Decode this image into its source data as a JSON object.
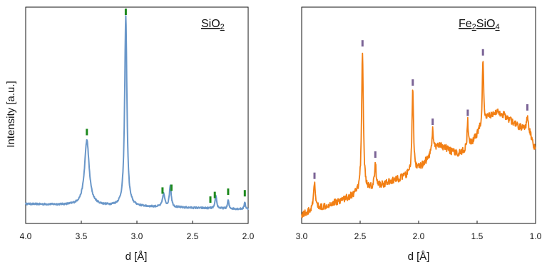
{
  "chart_data": [
    {
      "type": "line",
      "panel_label": "SiO2",
      "label_base": "SiO",
      "label_sub": "2",
      "xlabel": "d [Å]",
      "ylabel": "Intensity [a.u.]",
      "xlim": [
        4.0,
        2.0
      ],
      "x_reversed": true,
      "xticks": [
        "4.0",
        "3.5",
        "3.0",
        "2.5",
        "2.0"
      ],
      "xtick_values": [
        4.0,
        3.5,
        3.0,
        2.5,
        2.0
      ],
      "ylim": [
        0,
        100
      ],
      "line_color": "#6a97c9",
      "marker_color": "#1e8a1e",
      "background": 9,
      "peaks": [
        {
          "d": 3.45,
          "intensity": 30,
          "width": 0.025
        },
        {
          "d": 3.1,
          "intensity": 88,
          "width": 0.012
        },
        {
          "d": 2.76,
          "intensity": 6,
          "width": 0.012
        },
        {
          "d": 2.7,
          "intensity": 10,
          "width": 0.01
        },
        {
          "d": 2.29,
          "intensity": 6,
          "width": 0.008
        },
        {
          "d": 2.18,
          "intensity": 4,
          "width": 0.007
        },
        {
          "d": 2.03,
          "intensity": 3.5,
          "width": 0.006
        }
      ],
      "markers": [
        3.45,
        3.1,
        2.77,
        2.69,
        2.34,
        2.3,
        2.18,
        2.03
      ]
    },
    {
      "type": "line",
      "panel_label": "Fe2SiO4",
      "label_pre": "Fe",
      "label_sub1": "2",
      "label_mid": "SiO",
      "label_sub2": "4",
      "xlabel": "d [Å]",
      "xlim": [
        3.0,
        1.0
      ],
      "x_reversed": true,
      "xticks": [
        "3.0",
        "2.5",
        "2.0",
        "1.5",
        "1.0"
      ],
      "xtick_values": [
        3.0,
        2.5,
        2.0,
        1.5,
        1.0
      ],
      "ylim": [
        0,
        100
      ],
      "line_color": "#f27f14",
      "marker_color": "#7b6496",
      "peaks": [
        {
          "d": 2.89,
          "intensity": 12,
          "width": 0.01
        },
        {
          "d": 2.48,
          "intensity": 65,
          "width": 0.009
        },
        {
          "d": 2.37,
          "intensity": 11,
          "width": 0.008
        },
        {
          "d": 2.05,
          "intensity": 38,
          "width": 0.008
        },
        {
          "d": 1.88,
          "intensity": 10,
          "width": 0.008
        },
        {
          "d": 1.58,
          "intensity": 12,
          "width": 0.006
        },
        {
          "d": 1.45,
          "intensity": 30,
          "width": 0.007
        },
        {
          "d": 1.07,
          "intensity": 6,
          "width": 0.006
        }
      ],
      "markers": [
        2.89,
        2.48,
        2.37,
        2.05,
        1.88,
        1.58,
        1.45,
        1.07
      ]
    }
  ]
}
